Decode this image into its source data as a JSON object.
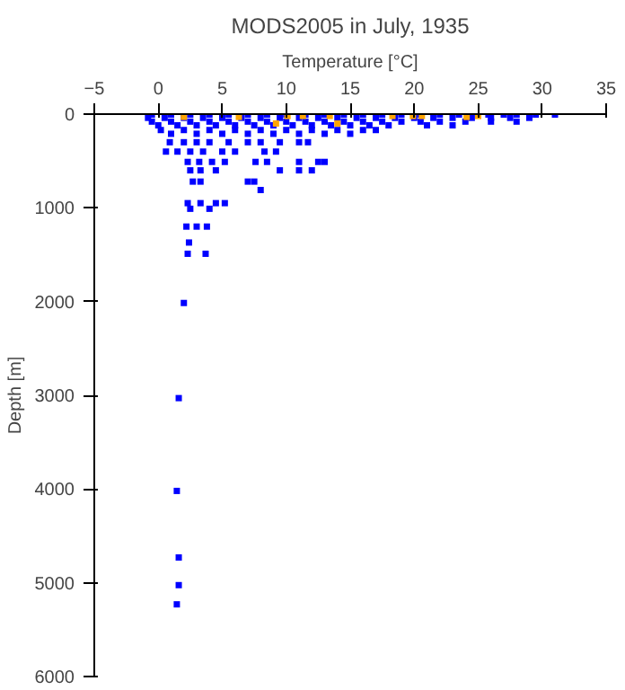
{
  "chart_data": {
    "type": "scatter",
    "title": "MODS2005 in July, 1935",
    "xlabel": "Temperature [°C]",
    "ylabel": "Depth [m]",
    "xlim": [
      -5,
      35
    ],
    "xticks": [
      -5,
      0,
      5,
      10,
      15,
      20,
      25,
      30,
      35
    ],
    "ylim": [
      6000,
      0
    ],
    "yticks": [
      0,
      1000,
      2000,
      3000,
      4000,
      5000,
      6000
    ],
    "marker": "square",
    "series": [
      {
        "color": "#0000ff",
        "x": [
          -0.5,
          1,
          2.5,
          4,
          5.5,
          7,
          8.5,
          10,
          11.5,
          13,
          14.5,
          16,
          17.5,
          19,
          20.5,
          22,
          23.5,
          25.8,
          27,
          28,
          29.5,
          31,
          -0.8,
          0.5,
          2,
          3.5,
          5,
          6.5,
          8,
          9.5,
          11,
          12.5,
          14,
          15.5,
          17,
          18.5,
          20,
          21.5,
          23,
          24.5,
          26,
          27.5,
          29,
          -0.5,
          1,
          2.5,
          4,
          5.5,
          7,
          8.5,
          10,
          11.5,
          13,
          14.5,
          16,
          17.5,
          19,
          20.5,
          22,
          24,
          26,
          28,
          0,
          1.5,
          3,
          4.5,
          6,
          7.5,
          9,
          10.5,
          12,
          13.5,
          15,
          16.5,
          18,
          21,
          23,
          0.2,
          2,
          4,
          6,
          8,
          10,
          12,
          14,
          16,
          17,
          1,
          3,
          5,
          7,
          9,
          11,
          13,
          15,
          0.9,
          2,
          3,
          4,
          5.5,
          7,
          8,
          9.5,
          11,
          11.7,
          0.6,
          1.5,
          2.5,
          3.5,
          5,
          6,
          8.3,
          9.2,
          2.3,
          3.2,
          4.2,
          5.2,
          7.6,
          8.5,
          11,
          12.5,
          13,
          2.5,
          3.3,
          4.5,
          9.5,
          11,
          12,
          2.7,
          3.3,
          7,
          7.5,
          8,
          2.3,
          3.3,
          4.5,
          5.2,
          2.5,
          4,
          2.2,
          3,
          3.8,
          2.4,
          2.3,
          3.7,
          2,
          1.6,
          1.45,
          1.6,
          1.6,
          1.45
        ],
        "values": [
          5,
          5,
          5,
          5,
          5,
          5,
          5,
          5,
          5,
          5,
          5,
          5,
          5,
          5,
          5,
          5,
          5,
          5,
          5,
          5,
          5,
          5,
          40,
          40,
          40,
          40,
          40,
          40,
          40,
          40,
          40,
          40,
          40,
          40,
          40,
          40,
          40,
          40,
          40,
          40,
          40,
          40,
          40,
          80,
          80,
          80,
          80,
          80,
          80,
          80,
          80,
          80,
          80,
          80,
          80,
          80,
          80,
          80,
          80,
          80,
          80,
          80,
          120,
          120,
          120,
          120,
          120,
          120,
          120,
          120,
          120,
          120,
          120,
          120,
          120,
          120,
          120,
          170,
          170,
          170,
          170,
          170,
          170,
          170,
          170,
          170,
          170,
          210,
          210,
          210,
          210,
          210,
          210,
          210,
          210,
          300,
          300,
          300,
          300,
          300,
          300,
          300,
          300,
          300,
          300,
          400,
          400,
          400,
          400,
          400,
          400,
          400,
          400,
          510,
          510,
          510,
          510,
          510,
          510,
          510,
          510,
          510,
          600,
          600,
          600,
          600,
          600,
          600,
          720,
          720,
          720,
          720,
          810,
          950,
          950,
          950,
          950,
          1010,
          1010,
          1200,
          1200,
          1200,
          1370,
          1490,
          1490,
          2015,
          3030,
          4020,
          4730,
          5025,
          5230
        ]
      },
      {
        "color": "#ffa500",
        "x": [
          2,
          6.3,
          9.2,
          10.1,
          11.3,
          13.4,
          14,
          18.3,
          19.9,
          20.6,
          24.1,
          25
        ],
        "values": [
          30,
          30,
          100,
          20,
          20,
          20,
          100,
          20,
          20,
          20,
          30,
          20
        ]
      }
    ]
  }
}
